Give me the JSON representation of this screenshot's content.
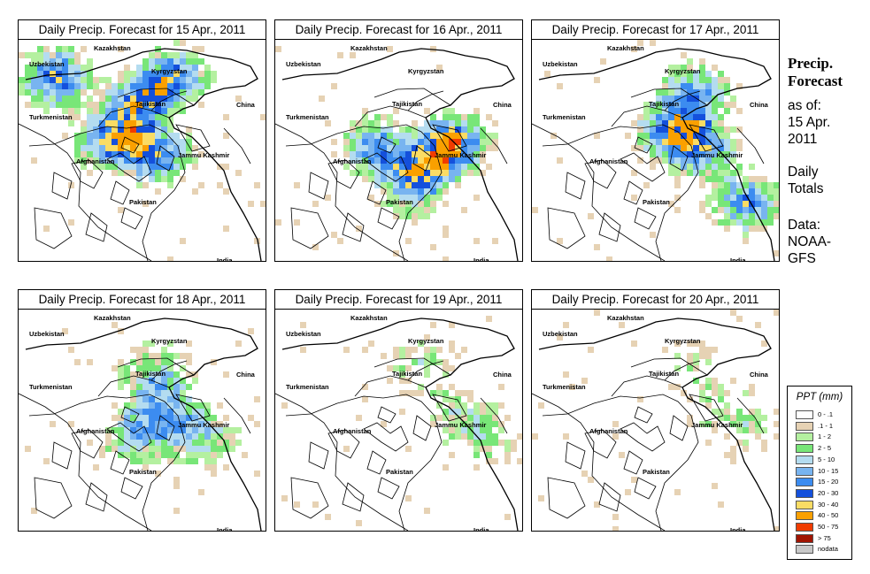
{
  "panels": [
    {
      "title": "Daily Precip. Forecast for  15 Apr., 2011",
      "intensity": 1.0,
      "shift": 0
    },
    {
      "title": "Daily Precip. Forecast for  16 Apr., 2011",
      "intensity": 0.85,
      "shift": 1
    },
    {
      "title": "Daily Precip. Forecast for  17 Apr., 2011",
      "intensity": 0.9,
      "shift": 2
    },
    {
      "title": "Daily Precip. Forecast for  18 Apr., 2011",
      "intensity": 0.6,
      "shift": 3
    },
    {
      "title": "Daily Precip. Forecast for  19 Apr., 2011",
      "intensity": 0.35,
      "shift": 4
    },
    {
      "title": "Daily Precip. Forecast for  20 Apr., 2011",
      "intensity": 0.25,
      "shift": 5
    }
  ],
  "country_labels": [
    "Kazakhstan",
    "Uzbekistan",
    "Kyrgyzstan",
    "Tajikistan",
    "Turkmenistan",
    "China",
    "Afghanistan",
    "Jammu Kashmir",
    "Pakistan",
    "India"
  ],
  "sidebar": {
    "title_line1": "Precip.",
    "title_line2": "Forecast",
    "asof_line1": "as of:",
    "asof_line2": "15 Apr.",
    "asof_line3": "2011",
    "totals_line1": "Daily",
    "totals_line2": "Totals",
    "data_line1": "Data:",
    "data_line2": "NOAA-",
    "data_line3": "GFS"
  },
  "legend": {
    "title": "PPT (mm)",
    "items": [
      {
        "label": "0 - .1",
        "color": "#ffffff"
      },
      {
        "label": ".1 - 1",
        "color": "#e6d2b4"
      },
      {
        "label": "1 - 2",
        "color": "#b4f0a0"
      },
      {
        "label": "2 - 5",
        "color": "#78e678"
      },
      {
        "label": "5 - 10",
        "color": "#b4dcf0"
      },
      {
        "label": "10 - 15",
        "color": "#78b4f0"
      },
      {
        "label": "15 - 20",
        "color": "#3c8cf0"
      },
      {
        "label": "20 - 30",
        "color": "#1450dc"
      },
      {
        "label": "30 - 40",
        "color": "#fadc64"
      },
      {
        "label": "40 - 50",
        "color": "#faa000"
      },
      {
        "label": "50 - 75",
        "color": "#f03c00"
      },
      {
        "label": "> 75",
        "color": "#a01400"
      },
      {
        "label": "nodata",
        "color": "#c8c8c8"
      }
    ]
  }
}
